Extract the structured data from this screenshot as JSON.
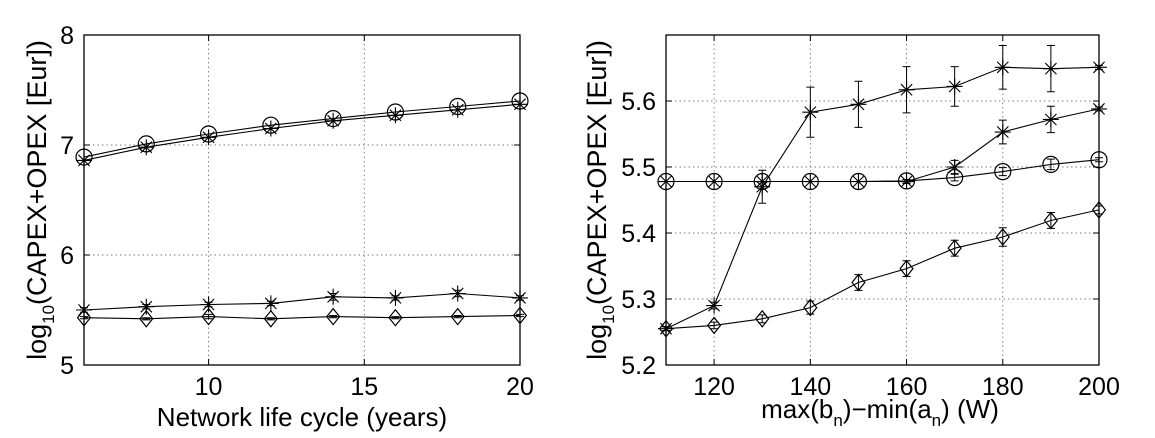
{
  "chart_data": [
    {
      "type": "line",
      "title": "",
      "xlabel": "Network life cycle (years)",
      "ylabel": {
        "base": "log",
        "sub": "10",
        "rest": "(CAPEX+OPEX [Eur])"
      },
      "xlim": [
        6,
        20
      ],
      "ylim": [
        5,
        8
      ],
      "xticks": [
        10,
        15,
        20
      ],
      "yticks": [
        5,
        6,
        7,
        8
      ],
      "grid": true,
      "legend": "none",
      "series": [
        {
          "marker": "circle",
          "x": [
            6,
            8,
            10,
            12,
            14,
            16,
            18,
            20
          ],
          "y": [
            6.89,
            7.01,
            7.1,
            7.18,
            7.24,
            7.3,
            7.35,
            7.4
          ]
        },
        {
          "marker": "star",
          "x": [
            6,
            8,
            10,
            12,
            14,
            16,
            18,
            20
          ],
          "y": [
            6.86,
            6.98,
            7.07,
            7.15,
            7.22,
            7.27,
            7.32,
            7.37
          ]
        },
        {
          "marker": "star",
          "x": [
            6,
            8,
            10,
            12,
            14,
            16,
            18,
            20
          ],
          "y": [
            5.5,
            5.53,
            5.55,
            5.56,
            5.62,
            5.61,
            5.65,
            5.61
          ],
          "err": [
            0.02,
            0.02,
            0.02,
            0.02,
            0.03,
            0.02,
            0.03,
            0.02
          ]
        },
        {
          "marker": "diamond",
          "x": [
            6,
            8,
            10,
            12,
            14,
            16,
            18,
            20
          ],
          "y": [
            5.43,
            5.42,
            5.44,
            5.42,
            5.44,
            5.43,
            5.44,
            5.45
          ],
          "err": [
            0.01,
            0.01,
            0.02,
            0.01,
            0.01,
            0.01,
            0.01,
            0.01
          ]
        }
      ]
    },
    {
      "type": "line",
      "title": "",
      "xlabel": {
        "p1": "max(b",
        "s1": "n",
        "p2": ")−min(a",
        "s2": "n",
        "p3": ") (W)"
      },
      "ylabel": {
        "base": "log",
        "sub": "10",
        "rest": "(CAPEX+OPEX [Eur])"
      },
      "xlim": [
        110,
        200
      ],
      "ylim": [
        5.2,
        5.7
      ],
      "xticks": [
        120,
        140,
        160,
        180,
        200
      ],
      "yticks": [
        5.2,
        5.3,
        5.4,
        5.5,
        5.6
      ],
      "grid": true,
      "legend": "none",
      "series": [
        {
          "marker": "star",
          "x": [
            110,
            120,
            130,
            140,
            150,
            160,
            170,
            180,
            190,
            200
          ],
          "y": [
            5.255,
            5.29,
            5.47,
            5.583,
            5.595,
            5.617,
            5.622,
            5.651,
            5.649,
            5.651
          ],
          "err": [
            0.003,
            0.005,
            0.025,
            0.038,
            0.035,
            0.035,
            0.03,
            0.033,
            0.035,
            0.003
          ]
        },
        {
          "marker": "star",
          "x": [
            110,
            120,
            130,
            140,
            150,
            160,
            170,
            180,
            190,
            200
          ],
          "y": [
            5.478,
            5.478,
            5.478,
            5.478,
            5.478,
            5.478,
            5.5,
            5.553,
            5.572,
            5.588
          ],
          "err": [
            0,
            0,
            0,
            0,
            0,
            0.003,
            0.01,
            0.018,
            0.02,
            0.003
          ]
        },
        {
          "marker": "circle",
          "x": [
            110,
            120,
            130,
            140,
            150,
            160,
            170,
            180,
            190,
            200
          ],
          "y": [
            5.478,
            5.478,
            5.478,
            5.478,
            5.478,
            5.479,
            5.484,
            5.493,
            5.504,
            5.511
          ],
          "err": [
            0,
            0,
            0,
            0,
            0,
            0.002,
            0.005,
            0.006,
            0.008,
            0.003
          ]
        },
        {
          "marker": "diamond",
          "x": [
            110,
            120,
            130,
            140,
            150,
            160,
            170,
            180,
            190,
            200
          ],
          "y": [
            5.255,
            5.26,
            5.27,
            5.287,
            5.325,
            5.346,
            5.377,
            5.394,
            5.419,
            5.435
          ],
          "err": [
            0.003,
            0.005,
            0.006,
            0.01,
            0.012,
            0.012,
            0.012,
            0.014,
            0.012,
            0.006
          ]
        }
      ]
    }
  ]
}
